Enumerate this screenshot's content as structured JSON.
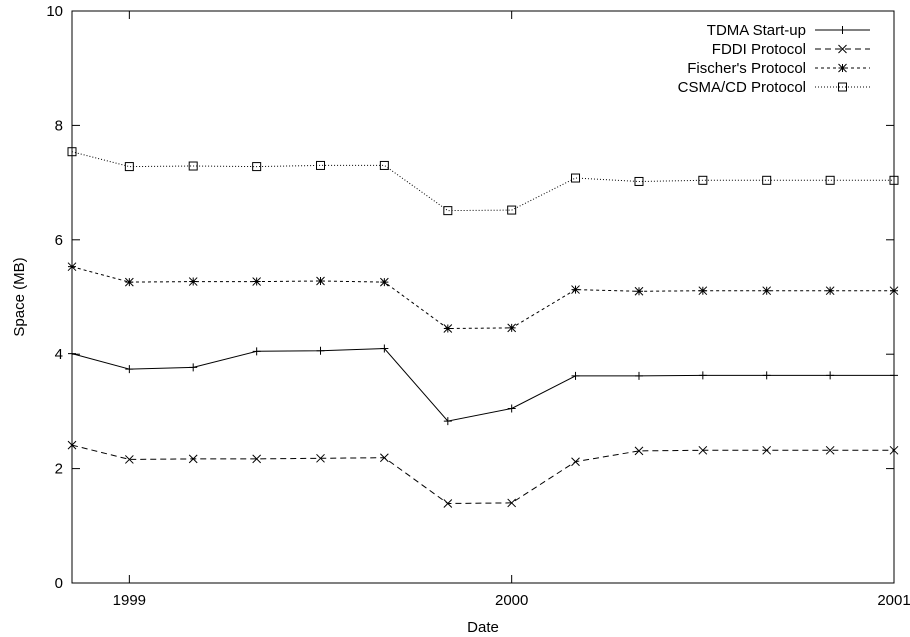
{
  "chart_data": {
    "type": "line",
    "xlabel": "Date",
    "ylabel": "Space (MB)",
    "xlim": [
      1998.85,
      2001
    ],
    "ylim": [
      0,
      10
    ],
    "x_ticks": [
      {
        "value": 1999,
        "label": "1999"
      },
      {
        "value": 2000,
        "label": "2000"
      },
      {
        "value": 2001,
        "label": "2001"
      }
    ],
    "y_ticks": [
      {
        "value": 0,
        "label": "0"
      },
      {
        "value": 2,
        "label": "2"
      },
      {
        "value": 4,
        "label": "4"
      },
      {
        "value": 6,
        "label": "6"
      },
      {
        "value": 8,
        "label": "8"
      },
      {
        "value": 10,
        "label": "10"
      }
    ],
    "grid": false,
    "legend_position": "top-right",
    "x": [
      1998.85,
      1999.0,
      1999.167,
      1999.333,
      1999.5,
      1999.667,
      1999.833,
      2000.0,
      2000.167,
      2000.333,
      2000.5,
      2000.667,
      2000.833,
      2001.0
    ],
    "series": [
      {
        "name": "TDMA Start-up",
        "style": "solid",
        "marker": "plus",
        "values": [
          4.01,
          3.74,
          3.77,
          4.05,
          4.06,
          4.1,
          2.83,
          3.05,
          3.62,
          3.62,
          3.63,
          3.63,
          3.63,
          3.63
        ]
      },
      {
        "name": "FDDI Protocol",
        "style": "dashed",
        "marker": "cross",
        "values": [
          2.41,
          2.16,
          2.17,
          2.17,
          2.18,
          2.19,
          1.39,
          1.4,
          2.12,
          2.31,
          2.32,
          2.32,
          2.32,
          2.32
        ]
      },
      {
        "name": "Fischer's Protocol",
        "style": "short-dash",
        "marker": "star",
        "values": [
          5.53,
          5.26,
          5.27,
          5.27,
          5.28,
          5.26,
          4.45,
          4.46,
          5.13,
          5.1,
          5.11,
          5.11,
          5.11,
          5.11
        ]
      },
      {
        "name": "CSMA/CD Protocol",
        "style": "dotted",
        "marker": "square",
        "values": [
          7.54,
          7.28,
          7.29,
          7.28,
          7.3,
          7.3,
          6.51,
          6.52,
          7.08,
          7.02,
          7.04,
          7.04,
          7.04,
          7.04
        ]
      }
    ]
  }
}
